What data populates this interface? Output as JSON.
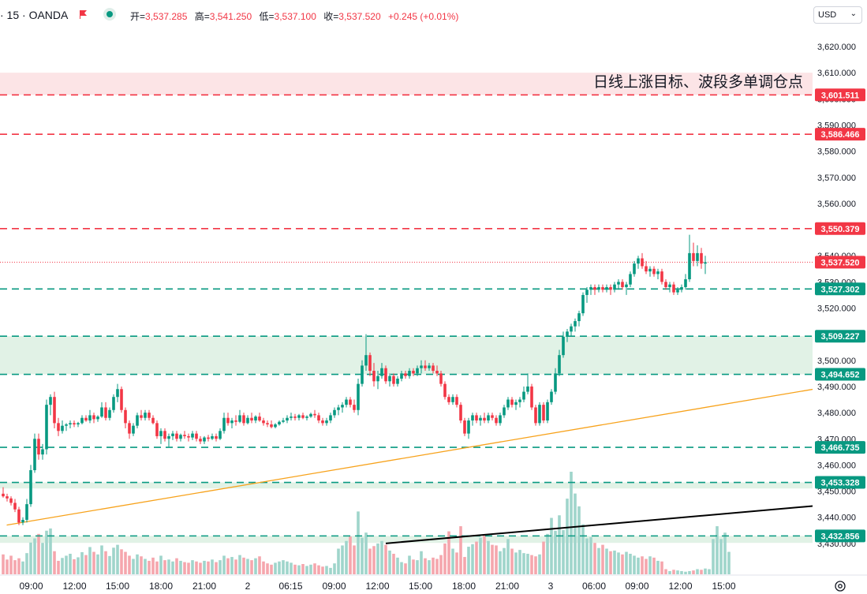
{
  "header": {
    "symbol_text": "· 15 · OANDA",
    "ohlc": [
      {
        "key": "开=",
        "value": "3,537.285"
      },
      {
        "key": "高=",
        "value": "3,541.250"
      },
      {
        "key": "低=",
        "value": "3,537.100"
      },
      {
        "key": "收=",
        "value": "3,537.520"
      }
    ],
    "change": "+0.245 (+0.01%)",
    "currency": "USD"
  },
  "chart_data": {
    "type": "candlestick",
    "annotation": "日线上涨目标、波段多单调仓点",
    "y_axis": {
      "min": 3428,
      "max": 3625,
      "ticks": [
        3620,
        3610,
        3600,
        3590,
        3580,
        3570,
        3560,
        3550,
        3540,
        3530,
        3520,
        3510,
        3500,
        3490,
        3480,
        3470,
        3460,
        3450,
        3440,
        3430
      ],
      "tick_labels": [
        "3,620.000",
        "3,610.000",
        "3,600.000",
        "3,590.000",
        "3,580.000",
        "3,570.000",
        "3,560.000",
        "3,550.000",
        "3,540.000",
        "3,530.000",
        "3,520.000",
        "3,510.000",
        "3,500.000",
        "3,490.000",
        "3,480.000",
        "3,470.000",
        "3,460.000",
        "3,450.000",
        "3,440.000",
        "3,430.000"
      ]
    },
    "x_axis": {
      "tick_labels": [
        "09:00",
        "12:00",
        "15:00",
        "18:00",
        "21:00",
        "2",
        "06:15",
        "09:00",
        "12:00",
        "15:00",
        "18:00",
        "21:00",
        "3",
        "06:00",
        "09:00",
        "12:00",
        "15:00"
      ]
    },
    "horizontal_levels": [
      {
        "value": 3601.511,
        "label": "3,601.511",
        "color": "#f23645"
      },
      {
        "value": 3586.466,
        "label": "3,586.466",
        "color": "#f23645"
      },
      {
        "value": 3550.379,
        "label": "3,550.379",
        "color": "#f23645"
      },
      {
        "value": 3527.302,
        "label": "3,527.302",
        "color": "#089981"
      },
      {
        "value": 3509.227,
        "label": "3,509.227",
        "color": "#089981"
      },
      {
        "value": 3494.652,
        "label": "3,494.652",
        "color": "#089981"
      },
      {
        "value": 3466.735,
        "label": "3,466.735",
        "color": "#089981"
      },
      {
        "value": 3453.328,
        "label": "3,453.328",
        "color": "#089981"
      },
      {
        "value": 3432.856,
        "label": "3,432.856",
        "color": "#089981"
      }
    ],
    "zones": [
      {
        "from": 3601.5,
        "to": 3610.0,
        "color": "#fce4e6"
      },
      {
        "from": 3494.652,
        "to": 3509.227,
        "color": "#e1f2e6"
      },
      {
        "from": 3451.0,
        "to": 3453.328,
        "color": "#e1f2e6"
      },
      {
        "from": 3430.2,
        "to": 3432.856,
        "color": "#e1f2e6"
      }
    ],
    "current_price": {
      "value": 3537.52,
      "label": "3,537.520"
    },
    "trendlines": [
      {
        "name": "upper",
        "color": "#f7a21b",
        "from": {
          "t": 0.9,
          "price": 3437.0
        },
        "to": {
          "t": 241.0,
          "price": 3498.0
        }
      },
      {
        "name": "lower",
        "color": "#000000",
        "from": {
          "t": 97.0,
          "price": 3430.0
        },
        "to": {
          "t": 241.0,
          "price": 3449.0
        }
      }
    ],
    "time_ticks": [
      0.9,
      11.9,
      22.8,
      33.8,
      44.8,
      55.8,
      66.7,
      77.7,
      88.7,
      99.6,
      110.6,
      121.6,
      132.6,
      143.6,
      154.5,
      165.5,
      176.5
    ],
    "candles": [
      [
        3449.0,
        3451.5,
        3447.5,
        3448.0
      ],
      [
        3448.0,
        3449.0,
        3446.0,
        3447.2
      ],
      [
        3447.2,
        3448.0,
        3444.5,
        3445.5
      ],
      [
        3445.5,
        3447.0,
        3442.0,
        3443.0
      ],
      [
        3443.0,
        3444.0,
        3437.0,
        3438.0
      ],
      [
        3438.0,
        3440.0,
        3437.0,
        3439.0
      ],
      [
        3439.0,
        3447.0,
        3438.0,
        3445.0
      ],
      [
        3445.0,
        3460.0,
        3444.0,
        3458.0
      ],
      [
        3458.0,
        3472.0,
        3457.0,
        3470.0
      ],
      [
        3470.0,
        3472.0,
        3462.0,
        3464.0
      ],
      [
        3464.0,
        3468.0,
        3462.0,
        3466.0
      ],
      [
        3466.0,
        3485.0,
        3464.0,
        3483.0
      ],
      [
        3483.0,
        3487.0,
        3479.0,
        3486.0
      ],
      [
        3486.0,
        3488.0,
        3474.0,
        3476.0
      ],
      [
        3476.0,
        3478.0,
        3471.0,
        3473.0
      ],
      [
        3473.0,
        3477.0,
        3472.0,
        3475.0
      ],
      [
        3475.0,
        3476.0,
        3473.0,
        3475.5
      ],
      [
        3475.5,
        3477.0,
        3474.0,
        3476.0
      ],
      [
        3476.0,
        3477.0,
        3474.5,
        3475.5
      ],
      [
        3475.5,
        3476.5,
        3474.5,
        3476.0
      ],
      [
        3476.0,
        3479.0,
        3475.5,
        3478.0
      ],
      [
        3478.0,
        3479.0,
        3476.5,
        3477.0
      ],
      [
        3477.0,
        3481.0,
        3476.0,
        3479.0
      ],
      [
        3479.0,
        3480.0,
        3476.0,
        3477.5
      ],
      [
        3477.5,
        3479.0,
        3476.5,
        3478.5
      ],
      [
        3478.5,
        3484.0,
        3478.0,
        3482.0
      ],
      [
        3482.0,
        3484.0,
        3477.0,
        3478.0
      ],
      [
        3478.0,
        3482.0,
        3477.0,
        3481.0
      ],
      [
        3481.0,
        3487.0,
        3480.0,
        3486.0
      ],
      [
        3486.0,
        3491.0,
        3484.0,
        3489.0
      ],
      [
        3489.0,
        3490.0,
        3480.0,
        3481.0
      ],
      [
        3481.0,
        3482.0,
        3474.0,
        3476.0
      ],
      [
        3476.0,
        3477.0,
        3470.0,
        3472.0
      ],
      [
        3472.0,
        3476.0,
        3471.0,
        3475.0
      ],
      [
        3475.0,
        3480.0,
        3474.0,
        3479.0
      ],
      [
        3479.0,
        3481.0,
        3477.0,
        3478.0
      ],
      [
        3478.0,
        3481.0,
        3477.0,
        3480.0
      ],
      [
        3480.0,
        3481.0,
        3477.0,
        3478.0
      ],
      [
        3478.0,
        3479.0,
        3475.5,
        3476.0
      ],
      [
        3476.0,
        3477.0,
        3470.0,
        3471.0
      ],
      [
        3471.0,
        3474.0,
        3468.0,
        3473.0
      ],
      [
        3473.0,
        3474.0,
        3469.0,
        3470.0
      ],
      [
        3470.0,
        3472.0,
        3467.0,
        3471.0
      ],
      [
        3471.0,
        3473.0,
        3469.5,
        3472.0
      ],
      [
        3472.0,
        3473.0,
        3469.0,
        3470.0
      ],
      [
        3470.0,
        3472.0,
        3469.0,
        3471.5
      ],
      [
        3471.5,
        3473.0,
        3470.0,
        3471.0
      ],
      [
        3471.0,
        3472.0,
        3469.0,
        3470.5
      ],
      [
        3470.5,
        3473.0,
        3469.5,
        3472.0
      ],
      [
        3472.0,
        3473.0,
        3469.0,
        3470.0
      ],
      [
        3470.0,
        3471.0,
        3468.0,
        3469.0
      ],
      [
        3469.0,
        3471.0,
        3468.0,
        3470.5
      ],
      [
        3470.5,
        3471.5,
        3469.0,
        3470.0
      ],
      [
        3470.0,
        3472.0,
        3469.5,
        3471.0
      ],
      [
        3471.0,
        3472.0,
        3469.0,
        3470.0
      ],
      [
        3470.0,
        3474.0,
        3469.5,
        3473.0
      ],
      [
        3473.0,
        3480.0,
        3472.0,
        3478.0
      ],
      [
        3478.0,
        3480.0,
        3475.0,
        3476.0
      ],
      [
        3476.0,
        3478.0,
        3474.0,
        3477.0
      ],
      [
        3477.0,
        3479.0,
        3475.0,
        3476.5
      ],
      [
        3476.5,
        3481.0,
        3476.0,
        3479.0
      ],
      [
        3479.0,
        3480.0,
        3475.0,
        3476.0
      ],
      [
        3476.0,
        3479.0,
        3475.5,
        3478.0
      ],
      [
        3478.0,
        3480.0,
        3476.0,
        3477.0
      ],
      [
        3477.0,
        3479.0,
        3476.0,
        3478.5
      ],
      [
        3478.5,
        3480.0,
        3476.5,
        3477.0
      ],
      [
        3477.0,
        3478.0,
        3475.0,
        3476.0
      ],
      [
        3476.0,
        3477.0,
        3474.5,
        3475.5
      ],
      [
        3475.5,
        3477.0,
        3474.0,
        3474.5
      ],
      [
        3474.5,
        3476.0,
        3474.0,
        3475.5
      ],
      [
        3475.5,
        3477.0,
        3475.0,
        3476.5
      ],
      [
        3476.5,
        3478.0,
        3476.0,
        3477.0
      ],
      [
        3477.0,
        3479.0,
        3476.0,
        3478.0
      ],
      [
        3478.0,
        3480.0,
        3477.0,
        3478.5
      ],
      [
        3478.5,
        3479.5,
        3477.0,
        3478.0
      ],
      [
        3478.0,
        3479.5,
        3477.0,
        3479.0
      ],
      [
        3479.0,
        3480.0,
        3477.5,
        3478.0
      ],
      [
        3478.0,
        3479.0,
        3477.0,
        3478.5
      ],
      [
        3478.5,
        3480.0,
        3478.0,
        3479.5
      ],
      [
        3479.5,
        3481.0,
        3478.0,
        3479.0
      ],
      [
        3479.0,
        3480.0,
        3476.0,
        3477.0
      ],
      [
        3477.0,
        3478.0,
        3475.0,
        3476.0
      ],
      [
        3476.0,
        3478.0,
        3475.0,
        3477.0
      ],
      [
        3477.0,
        3480.0,
        3476.0,
        3479.0
      ],
      [
        3479.0,
        3482.0,
        3478.0,
        3481.0
      ],
      [
        3481.0,
        3483.0,
        3479.0,
        3482.0
      ],
      [
        3482.0,
        3484.0,
        3480.0,
        3483.0
      ],
      [
        3483.0,
        3486.0,
        3482.0,
        3485.0
      ],
      [
        3485.0,
        3486.0,
        3482.0,
        3483.0
      ],
      [
        3483.0,
        3485.0,
        3480.0,
        3481.0
      ],
      [
        3481.0,
        3493.0,
        3479.0,
        3491.0
      ],
      [
        3491.0,
        3500.0,
        3490.0,
        3498.0
      ],
      [
        3498.0,
        3510.0,
        3496.0,
        3502.0
      ],
      [
        3502.0,
        3503.0,
        3494.0,
        3496.0
      ],
      [
        3496.0,
        3499.0,
        3490.0,
        3492.0
      ],
      [
        3492.0,
        3496.0,
        3489.0,
        3494.0
      ],
      [
        3494.0,
        3499.0,
        3493.0,
        3497.0
      ],
      [
        3497.0,
        3498.0,
        3491.0,
        3492.0
      ],
      [
        3492.0,
        3495.0,
        3490.0,
        3494.0
      ],
      [
        3494.0,
        3495.0,
        3490.0,
        3491.0
      ],
      [
        3491.0,
        3494.0,
        3490.0,
        3493.0
      ],
      [
        3493.0,
        3496.0,
        3492.0,
        3495.0
      ],
      [
        3495.0,
        3496.0,
        3493.0,
        3494.0
      ],
      [
        3494.0,
        3497.0,
        3493.0,
        3496.0
      ],
      [
        3496.0,
        3497.0,
        3494.0,
        3495.0
      ],
      [
        3495.0,
        3498.0,
        3494.0,
        3497.0
      ],
      [
        3497.0,
        3500.0,
        3495.0,
        3498.0
      ],
      [
        3498.0,
        3500.0,
        3496.0,
        3497.0
      ],
      [
        3497.0,
        3499.0,
        3496.0,
        3498.0
      ],
      [
        3498.0,
        3499.0,
        3495.0,
        3496.0
      ],
      [
        3496.0,
        3498.0,
        3494.0,
        3495.0
      ],
      [
        3495.0,
        3496.0,
        3490.0,
        3491.0
      ],
      [
        3491.0,
        3492.0,
        3485.0,
        3486.0
      ],
      [
        3486.0,
        3487.0,
        3483.0,
        3484.0
      ],
      [
        3484.0,
        3487.0,
        3483.0,
        3486.0
      ],
      [
        3486.0,
        3487.0,
        3482.0,
        3483.0
      ],
      [
        3483.0,
        3484.0,
        3476.0,
        3477.0
      ],
      [
        3477.0,
        3478.0,
        3471.0,
        3472.0
      ],
      [
        3472.0,
        3478.0,
        3470.0,
        3477.0
      ],
      [
        3477.0,
        3480.0,
        3475.0,
        3479.0
      ],
      [
        3479.0,
        3480.0,
        3476.0,
        3477.0
      ],
      [
        3477.0,
        3479.0,
        3475.0,
        3478.0
      ],
      [
        3478.0,
        3480.0,
        3476.0,
        3477.0
      ],
      [
        3477.0,
        3480.0,
        3476.0,
        3479.0
      ],
      [
        3479.0,
        3480.0,
        3477.0,
        3478.0
      ],
      [
        3478.0,
        3479.0,
        3475.0,
        3476.0
      ],
      [
        3476.0,
        3480.0,
        3475.0,
        3479.0
      ],
      [
        3479.0,
        3483.0,
        3478.0,
        3482.0
      ],
      [
        3482.0,
        3486.0,
        3481.0,
        3485.0
      ],
      [
        3485.0,
        3486.0,
        3482.0,
        3483.0
      ],
      [
        3483.0,
        3485.0,
        3481.0,
        3484.0
      ],
      [
        3484.0,
        3486.0,
        3482.0,
        3485.0
      ],
      [
        3485.0,
        3490.0,
        3484.0,
        3488.0
      ],
      [
        3488.0,
        3495.0,
        3487.0,
        3490.0
      ],
      [
        3490.0,
        3491.0,
        3481.0,
        3482.0
      ],
      [
        3482.0,
        3483.0,
        3475.0,
        3476.0
      ],
      [
        3476.0,
        3484.0,
        3475.0,
        3483.0
      ],
      [
        3483.0,
        3484.0,
        3476.0,
        3477.0
      ],
      [
        3477.0,
        3485.0,
        3476.0,
        3484.0
      ],
      [
        3484.0,
        3489.0,
        3483.0,
        3488.0
      ],
      [
        3488.0,
        3497.0,
        3487.0,
        3495.0
      ],
      [
        3495.0,
        3504.0,
        3494.0,
        3502.0
      ],
      [
        3502.0,
        3511.0,
        3501.0,
        3509.0
      ],
      [
        3509.0,
        3512.0,
        3507.0,
        3511.0
      ],
      [
        3511.0,
        3514.0,
        3509.0,
        3513.0
      ],
      [
        3513.0,
        3516.0,
        3511.0,
        3515.0
      ],
      [
        3515.0,
        3519.0,
        3513.0,
        3518.0
      ],
      [
        3518.0,
        3526.0,
        3517.0,
        3525.0
      ],
      [
        3525.0,
        3528.0,
        3522.0,
        3527.0
      ],
      [
        3527.0,
        3529.0,
        3525.0,
        3528.0
      ],
      [
        3528.0,
        3529.0,
        3525.0,
        3527.0
      ],
      [
        3527.0,
        3529.0,
        3526.0,
        3528.0
      ],
      [
        3528.0,
        3529.0,
        3526.0,
        3527.0
      ],
      [
        3527.0,
        3529.0,
        3526.0,
        3528.0
      ],
      [
        3528.0,
        3529.0,
        3525.0,
        3527.0
      ],
      [
        3527.0,
        3530.0,
        3526.0,
        3529.0
      ],
      [
        3529.0,
        3531.0,
        3527.0,
        3530.0
      ],
      [
        3530.0,
        3531.0,
        3527.0,
        3528.0
      ],
      [
        3528.0,
        3530.0,
        3525.0,
        3529.0
      ],
      [
        3529.0,
        3534.0,
        3528.0,
        3533.0
      ],
      [
        3533.0,
        3538.0,
        3532.0,
        3537.0
      ],
      [
        3537.0,
        3540.0,
        3535.0,
        3539.0
      ],
      [
        3539.0,
        3541.0,
        3535.0,
        3536.0
      ],
      [
        3536.0,
        3538.0,
        3533.0,
        3534.0
      ],
      [
        3534.0,
        3536.0,
        3532.0,
        3535.0
      ],
      [
        3535.0,
        3536.0,
        3532.0,
        3533.0
      ],
      [
        3533.0,
        3535.0,
        3531.0,
        3534.0
      ],
      [
        3534.0,
        3535.0,
        3529.0,
        3530.0
      ],
      [
        3530.0,
        3531.0,
        3527.0,
        3528.0
      ],
      [
        3528.0,
        3530.0,
        3526.0,
        3529.0
      ],
      [
        3529.0,
        3530.0,
        3525.0,
        3526.0
      ],
      [
        3526.0,
        3528.0,
        3525.0,
        3527.0
      ],
      [
        3527.0,
        3529.0,
        3526.0,
        3528.0
      ],
      [
        3528.0,
        3533.0,
        3527.0,
        3531.0
      ],
      [
        3531.0,
        3548.0,
        3530.0,
        3541.0
      ],
      [
        3541.0,
        3545.0,
        3536.0,
        3538.0
      ],
      [
        3538.0,
        3544.0,
        3536.0,
        3541.0
      ],
      [
        3541.0,
        3543.0,
        3535.0,
        3537.0
      ],
      [
        3537.0,
        3540.0,
        3533.0,
        3537.5
      ]
    ],
    "volumes": [
      62,
      46,
      58,
      44,
      50,
      40,
      66,
      99,
      112,
      126,
      98,
      136,
      143,
      72,
      42,
      51,
      58,
      64,
      47,
      53,
      69,
      60,
      85,
      70,
      62,
      90,
      72,
      57,
      83,
      92,
      78,
      70,
      58,
      48,
      62,
      56,
      48,
      42,
      52,
      40,
      58,
      44,
      46,
      40,
      50,
      42,
      38,
      36,
      44,
      40,
      36,
      42,
      40,
      46,
      38,
      44,
      58,
      50,
      54,
      46,
      60,
      52,
      48,
      44,
      50,
      56,
      40,
      34,
      30,
      36,
      40,
      44,
      40,
      36,
      30,
      28,
      32,
      26,
      30,
      34,
      28,
      24,
      26,
      20,
      34,
      80,
      90,
      104,
      118,
      90,
      196,
      114,
      130,
      80,
      88,
      96,
      104,
      92,
      74,
      64,
      52,
      38,
      34,
      58,
      46,
      44,
      72,
      50,
      44,
      52,
      48,
      60,
      96,
      134,
      80,
      68,
      150,
      54,
      86,
      94,
      102,
      114,
      124,
      104,
      92,
      90,
      72,
      82,
      110,
      80,
      68,
      76,
      66,
      64,
      60,
      56,
      62,
      102,
      126,
      176,
      136,
      184,
      138,
      236,
      320,
      252,
      212,
      156,
      112,
      116,
      98,
      82,
      92,
      80,
      72,
      74,
      68,
      62,
      70,
      64,
      58,
      52,
      56,
      48,
      56,
      52,
      42,
      40,
      16,
      10,
      14,
      12,
      10,
      8,
      10,
      12,
      16,
      14,
      18,
      16,
      110,
      150,
      110,
      130,
      70
    ]
  }
}
